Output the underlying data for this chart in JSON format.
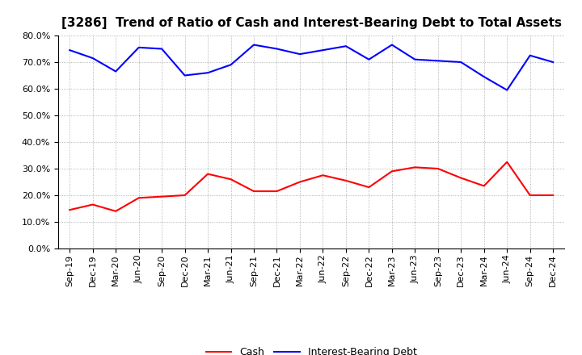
{
  "title": "[3286]  Trend of Ratio of Cash and Interest-Bearing Debt to Total Assets",
  "labels": [
    "Sep-19",
    "Dec-19",
    "Mar-20",
    "Jun-20",
    "Sep-20",
    "Dec-20",
    "Mar-21",
    "Jun-21",
    "Sep-21",
    "Dec-21",
    "Mar-22",
    "Jun-22",
    "Sep-22",
    "Dec-22",
    "Mar-23",
    "Jun-23",
    "Sep-23",
    "Dec-23",
    "Mar-24",
    "Jun-24",
    "Sep-24",
    "Dec-24"
  ],
  "cash": [
    14.5,
    16.5,
    14.0,
    19.0,
    19.5,
    20.0,
    28.0,
    26.0,
    21.5,
    21.5,
    25.0,
    27.5,
    25.5,
    23.0,
    29.0,
    30.5,
    30.0,
    26.5,
    23.5,
    32.5,
    20.0,
    20.0
  ],
  "interest_bearing_debt": [
    74.5,
    71.5,
    66.5,
    75.5,
    75.0,
    65.0,
    66.0,
    69.0,
    76.5,
    75.0,
    73.0,
    74.5,
    76.0,
    71.0,
    76.5,
    71.0,
    70.5,
    70.0,
    64.5,
    59.5,
    72.5,
    70.0
  ],
  "cash_color": "#ff0000",
  "debt_color": "#0000ff",
  "ylim": [
    0.0,
    80.0
  ],
  "yticks": [
    0.0,
    10.0,
    20.0,
    30.0,
    40.0,
    50.0,
    60.0,
    70.0,
    80.0
  ],
  "background_color": "#ffffff",
  "grid_color": "#888888",
  "legend_cash": "Cash",
  "legend_debt": "Interest-Bearing Debt",
  "title_fontsize": 11,
  "tick_fontsize": 8,
  "legend_fontsize": 9,
  "linewidth": 1.5
}
